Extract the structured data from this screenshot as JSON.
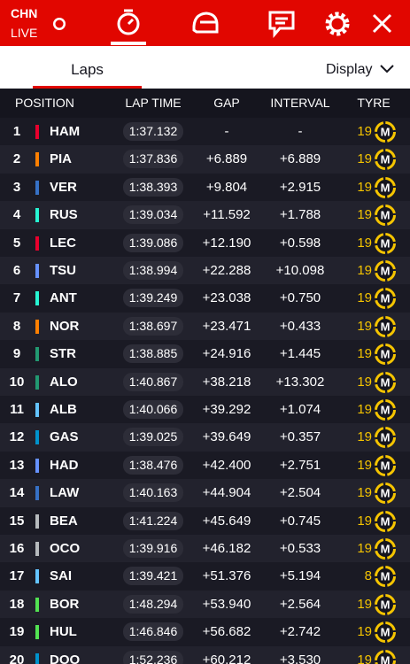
{
  "header": {
    "race": "CHN",
    "status": "LIVE"
  },
  "tabs": {
    "active": "Laps",
    "display": "Display"
  },
  "table": {
    "columns": [
      "POSITION",
      "LAP TIME",
      "GAP",
      "INTERVAL",
      "TYRE"
    ],
    "rows": [
      {
        "position": "1",
        "color": "#e8002d",
        "driver": "HAM",
        "lap_time": "1:37.132",
        "gap": "-",
        "interval": "-",
        "tyre_laps": "19",
        "tyre": "M"
      },
      {
        "position": "2",
        "color": "#ff8000",
        "driver": "PIA",
        "lap_time": "1:37.836",
        "gap": "+6.889",
        "interval": "+6.889",
        "tyre_laps": "19",
        "tyre": "M"
      },
      {
        "position": "3",
        "color": "#3671c6",
        "driver": "VER",
        "lap_time": "1:38.393",
        "gap": "+9.804",
        "interval": "+2.915",
        "tyre_laps": "19",
        "tyre": "M"
      },
      {
        "position": "4",
        "color": "#27f4d2",
        "driver": "RUS",
        "lap_time": "1:39.034",
        "gap": "+11.592",
        "interval": "+1.788",
        "tyre_laps": "19",
        "tyre": "M"
      },
      {
        "position": "5",
        "color": "#e8002d",
        "driver": "LEC",
        "lap_time": "1:39.086",
        "gap": "+12.190",
        "interval": "+0.598",
        "tyre_laps": "19",
        "tyre": "M"
      },
      {
        "position": "6",
        "color": "#6692ff",
        "driver": "TSU",
        "lap_time": "1:38.994",
        "gap": "+22.288",
        "interval": "+10.098",
        "tyre_laps": "19",
        "tyre": "M"
      },
      {
        "position": "7",
        "color": "#27f4d2",
        "driver": "ANT",
        "lap_time": "1:39.249",
        "gap": "+23.038",
        "interval": "+0.750",
        "tyre_laps": "19",
        "tyre": "M"
      },
      {
        "position": "8",
        "color": "#ff8000",
        "driver": "NOR",
        "lap_time": "1:38.697",
        "gap": "+23.471",
        "interval": "+0.433",
        "tyre_laps": "19",
        "tyre": "M"
      },
      {
        "position": "9",
        "color": "#229971",
        "driver": "STR",
        "lap_time": "1:38.885",
        "gap": "+24.916",
        "interval": "+1.445",
        "tyre_laps": "19",
        "tyre": "M"
      },
      {
        "position": "10",
        "color": "#229971",
        "driver": "ALO",
        "lap_time": "1:40.867",
        "gap": "+38.218",
        "interval": "+13.302",
        "tyre_laps": "19",
        "tyre": "M"
      },
      {
        "position": "11",
        "color": "#64c4ff",
        "driver": "ALB",
        "lap_time": "1:40.066",
        "gap": "+39.292",
        "interval": "+1.074",
        "tyre_laps": "19",
        "tyre": "M"
      },
      {
        "position": "12",
        "color": "#0093cc",
        "driver": "GAS",
        "lap_time": "1:39.025",
        "gap": "+39.649",
        "interval": "+0.357",
        "tyre_laps": "19",
        "tyre": "M"
      },
      {
        "position": "13",
        "color": "#6692ff",
        "driver": "HAD",
        "lap_time": "1:38.476",
        "gap": "+42.400",
        "interval": "+2.751",
        "tyre_laps": "19",
        "tyre": "M"
      },
      {
        "position": "14",
        "color": "#3671c6",
        "driver": "LAW",
        "lap_time": "1:40.163",
        "gap": "+44.904",
        "interval": "+2.504",
        "tyre_laps": "19",
        "tyre": "M"
      },
      {
        "position": "15",
        "color": "#b6babd",
        "driver": "BEA",
        "lap_time": "1:41.224",
        "gap": "+45.649",
        "interval": "+0.745",
        "tyre_laps": "19",
        "tyre": "M"
      },
      {
        "position": "16",
        "color": "#b6babd",
        "driver": "OCO",
        "lap_time": "1:39.916",
        "gap": "+46.182",
        "interval": "+0.533",
        "tyre_laps": "19",
        "tyre": "M"
      },
      {
        "position": "17",
        "color": "#64c4ff",
        "driver": "SAI",
        "lap_time": "1:39.421",
        "gap": "+51.376",
        "interval": "+5.194",
        "tyre_laps": "8",
        "tyre": "M"
      },
      {
        "position": "18",
        "color": "#52e252",
        "driver": "BOR",
        "lap_time": "1:48.294",
        "gap": "+53.940",
        "interval": "+2.564",
        "tyre_laps": "19",
        "tyre": "M"
      },
      {
        "position": "19",
        "color": "#52e252",
        "driver": "HUL",
        "lap_time": "1:46.846",
        "gap": "+56.682",
        "interval": "+2.742",
        "tyre_laps": "19",
        "tyre": "M"
      },
      {
        "position": "20",
        "color": "#0093cc",
        "driver": "DOO",
        "lap_time": "1:52.236",
        "gap": "+60.212",
        "interval": "+3.530",
        "tyre_laps": "19",
        "tyre": "M"
      }
    ]
  }
}
